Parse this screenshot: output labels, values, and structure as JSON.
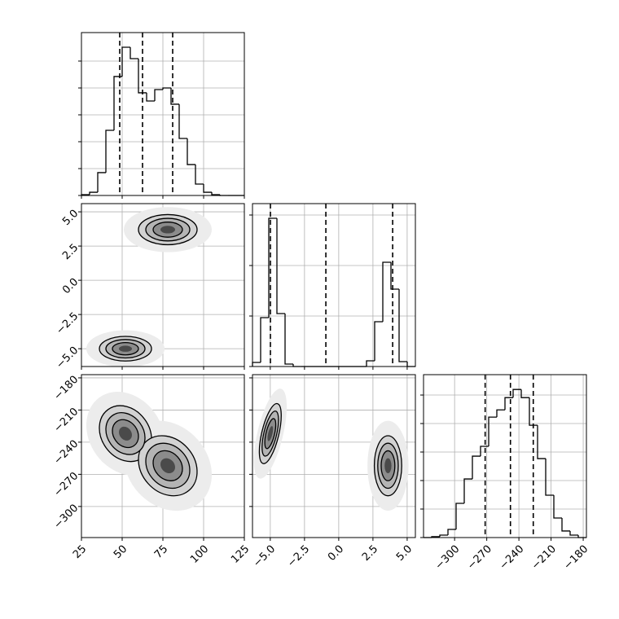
{
  "chart_data": {
    "type": "corner",
    "grid": true,
    "color": "#000000",
    "levels": [
      3,
      2,
      1.5,
      1,
      0.5
    ],
    "axes": [
      {
        "lim": [
          25,
          125
        ],
        "ticks": [
          25,
          50,
          75,
          100,
          125
        ]
      },
      {
        "lim": [
          -6.3,
          5.6
        ],
        "ticks": [
          {
            "value": -5,
            "label": "−5.0"
          },
          {
            "value": -2.5,
            "label": "−2.5"
          },
          {
            "value": 0,
            "label": "0.0"
          },
          2.5,
          {
            "value": 5,
            "label": "5.0"
          }
        ]
      },
      {
        "lim": [
          -329,
          -177
        ],
        "ticks": [
          {
            "value": -300,
            "label": "−300"
          },
          {
            "value": -270,
            "label": "−270"
          },
          {
            "value": -240,
            "label": "−240"
          },
          {
            "value": -210,
            "label": "−210"
          },
          {
            "value": -180,
            "label": "−180"
          }
        ]
      }
    ],
    "histograms": [
      {
        "bins": [
          25,
          30,
          35,
          40,
          45,
          50,
          55,
          60,
          65,
          70,
          75,
          80,
          85,
          90,
          95,
          100,
          105,
          110,
          115,
          120,
          125
        ],
        "values": [
          6,
          24,
          170,
          485,
          885,
          1103,
          1018,
          764,
          703,
          788,
          800,
          679,
          424,
          230,
          85,
          24,
          6,
          0,
          0,
          0
        ],
        "ylim": [
          0,
          1212
        ],
        "yticks": [
          0,
          200,
          400,
          600,
          800,
          1000
        ],
        "quantiles": [
          48.5,
          62.5,
          81
        ]
      },
      {
        "bins": [
          -6.3,
          -5.705,
          -5.11,
          -4.515,
          -3.92,
          -3.325,
          -2.73,
          -2.135,
          -1.54,
          -0.945,
          -0.35,
          0.245,
          0.84,
          1.435,
          2.03,
          2.625,
          3.22,
          3.815,
          4.41,
          5.005,
          5.6
        ],
        "values": [
          81,
          968,
          2936,
          1048,
          48,
          0,
          0,
          0,
          0,
          0,
          0,
          0,
          0,
          0,
          113,
          887,
          2065,
          1532,
          97,
          0
        ],
        "ylim": [
          0,
          3226
        ],
        "yticks": [
          0,
          1000,
          2000,
          3000
        ],
        "quantiles": [
          -4.99,
          -0.94,
          3.94
        ]
      },
      {
        "bins": [
          -329,
          -321.4,
          -313.8,
          -306.2,
          -298.6,
          -291,
          -283.4,
          -275.8,
          -268.2,
          -260.6,
          -253,
          -245.4,
          -237.8,
          -230.2,
          -222.6,
          -215,
          -207.4,
          -199.8,
          -192.2,
          -184.6,
          -177
        ],
        "values": [
          0,
          6,
          17,
          57,
          240,
          411,
          571,
          640,
          845,
          896,
          982,
          1039,
          982,
          788,
          554,
          297,
          137,
          46,
          17,
          0
        ],
        "ylim": [
          0,
          1143
        ],
        "yticks": [
          0,
          200,
          400,
          600,
          800,
          1000
        ],
        "quantiles": [
          -271.5,
          -247.9,
          -226.6
        ]
      }
    ],
    "pairs": [
      {
        "clusters": [
          {
            "center": [
              78,
              3.7
            ],
            "sigma": [
              9,
              0.55
            ],
            "rho": 0
          },
          {
            "center": [
              52,
              -5.0
            ],
            "sigma": [
              8,
              0.45
            ],
            "rho": 0
          }
        ]
      },
      {
        "clusters": [
          {
            "center": [
              52,
              -232
            ],
            "sigma": [
              8,
              13
            ],
            "rho": -0.2
          },
          {
            "center": [
              78,
              -262
            ],
            "sigma": [
              9,
              14
            ],
            "rho": -0.2
          }
        ]
      },
      {
        "clusters": [
          {
            "center": [
              -5.0,
              -232
            ],
            "sigma": [
              0.4,
              14
            ],
            "rho": 0.6
          },
          {
            "center": [
              3.6,
              -262
            ],
            "sigma": [
              0.5,
              14
            ],
            "rho": 0
          }
        ]
      }
    ]
  }
}
